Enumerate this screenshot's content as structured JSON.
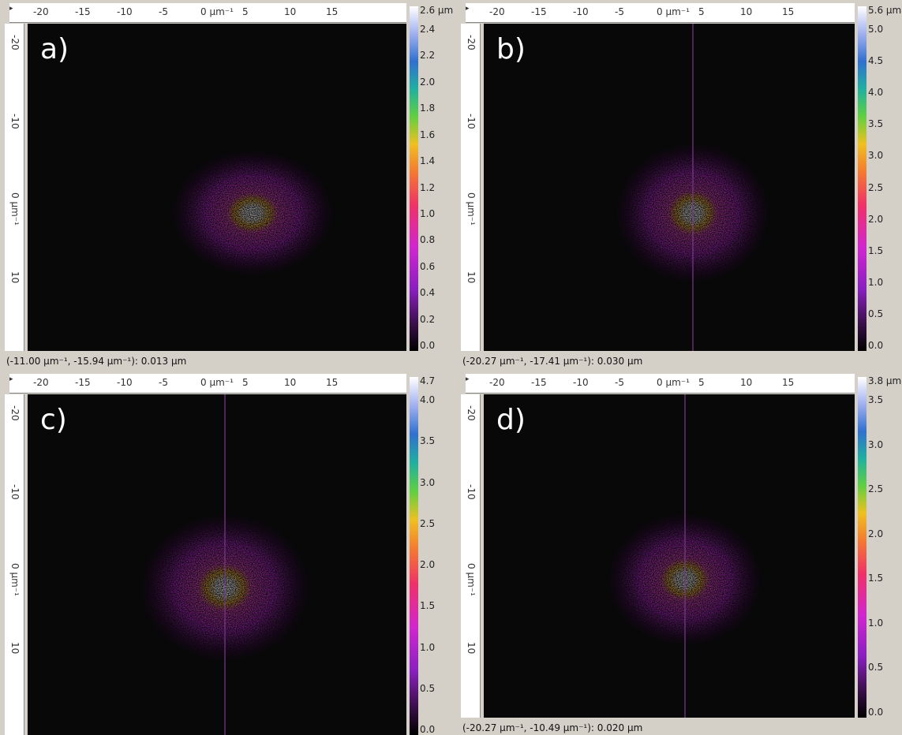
{
  "panels": [
    {
      "label": "a)",
      "top_ruler": [
        "-20",
        "-15",
        "-10",
        "-5",
        "0 µm⁻¹",
        "5",
        "10",
        "15"
      ],
      "left_ruler": [
        "-20",
        "-10",
        "0 µm⁻¹",
        "10"
      ],
      "colorbar": {
        "max_label": "2.6 µm",
        "ticks": [
          "2.4",
          "2.2",
          "2.0",
          "1.8",
          "1.6",
          "1.4",
          "1.2",
          "1.0",
          "0.8",
          "0.6",
          "0.4",
          "0.2",
          "0.0"
        ]
      },
      "status": "(-11.00 µm⁻¹, -15.94 µm⁻¹): 0.013 µm"
    },
    {
      "label": "b)",
      "top_ruler": [
        "-20",
        "-15",
        "-10",
        "-5",
        "0 µm⁻¹",
        "5",
        "10",
        "15"
      ],
      "left_ruler": [
        "-20",
        "-10",
        "0 µm⁻¹",
        "10"
      ],
      "colorbar": {
        "max_label": "5.6 µm",
        "ticks": [
          "5.0",
          "4.5",
          "4.0",
          "3.5",
          "3.0",
          "2.5",
          "2.0",
          "1.5",
          "1.0",
          "0.5",
          "0.0"
        ]
      },
      "status": "(-20.27 µm⁻¹, -17.41 µm⁻¹): 0.030 µm"
    },
    {
      "label": "c)",
      "top_ruler": [
        "-20",
        "-15",
        "-10",
        "-5",
        "0 µm⁻¹",
        "5",
        "10",
        "15"
      ],
      "left_ruler": [
        "-20",
        "-10",
        "0 µm⁻¹",
        "10"
      ],
      "colorbar": {
        "max_label": "4.7",
        "ticks": [
          "4.0",
          "3.5",
          "3.0",
          "2.5",
          "2.0",
          "1.5",
          "1.0",
          "0.5",
          "0.0"
        ]
      }
    },
    {
      "label": "d)",
      "top_ruler": [
        "-20",
        "-15",
        "-10",
        "-5",
        "0 µm⁻¹",
        "5",
        "10",
        "15"
      ],
      "left_ruler": [
        "-20",
        "-10",
        "0 µm⁻¹",
        "10"
      ],
      "colorbar": {
        "max_label": "3.8 µm",
        "ticks": [
          "3.5",
          "3.0",
          "2.5",
          "2.0",
          "1.5",
          "1.0",
          "0.5",
          "0.0"
        ]
      },
      "status": "(-20.27 µm⁻¹, -10.49 µm⁻¹): 0.020 µm"
    }
  ]
}
